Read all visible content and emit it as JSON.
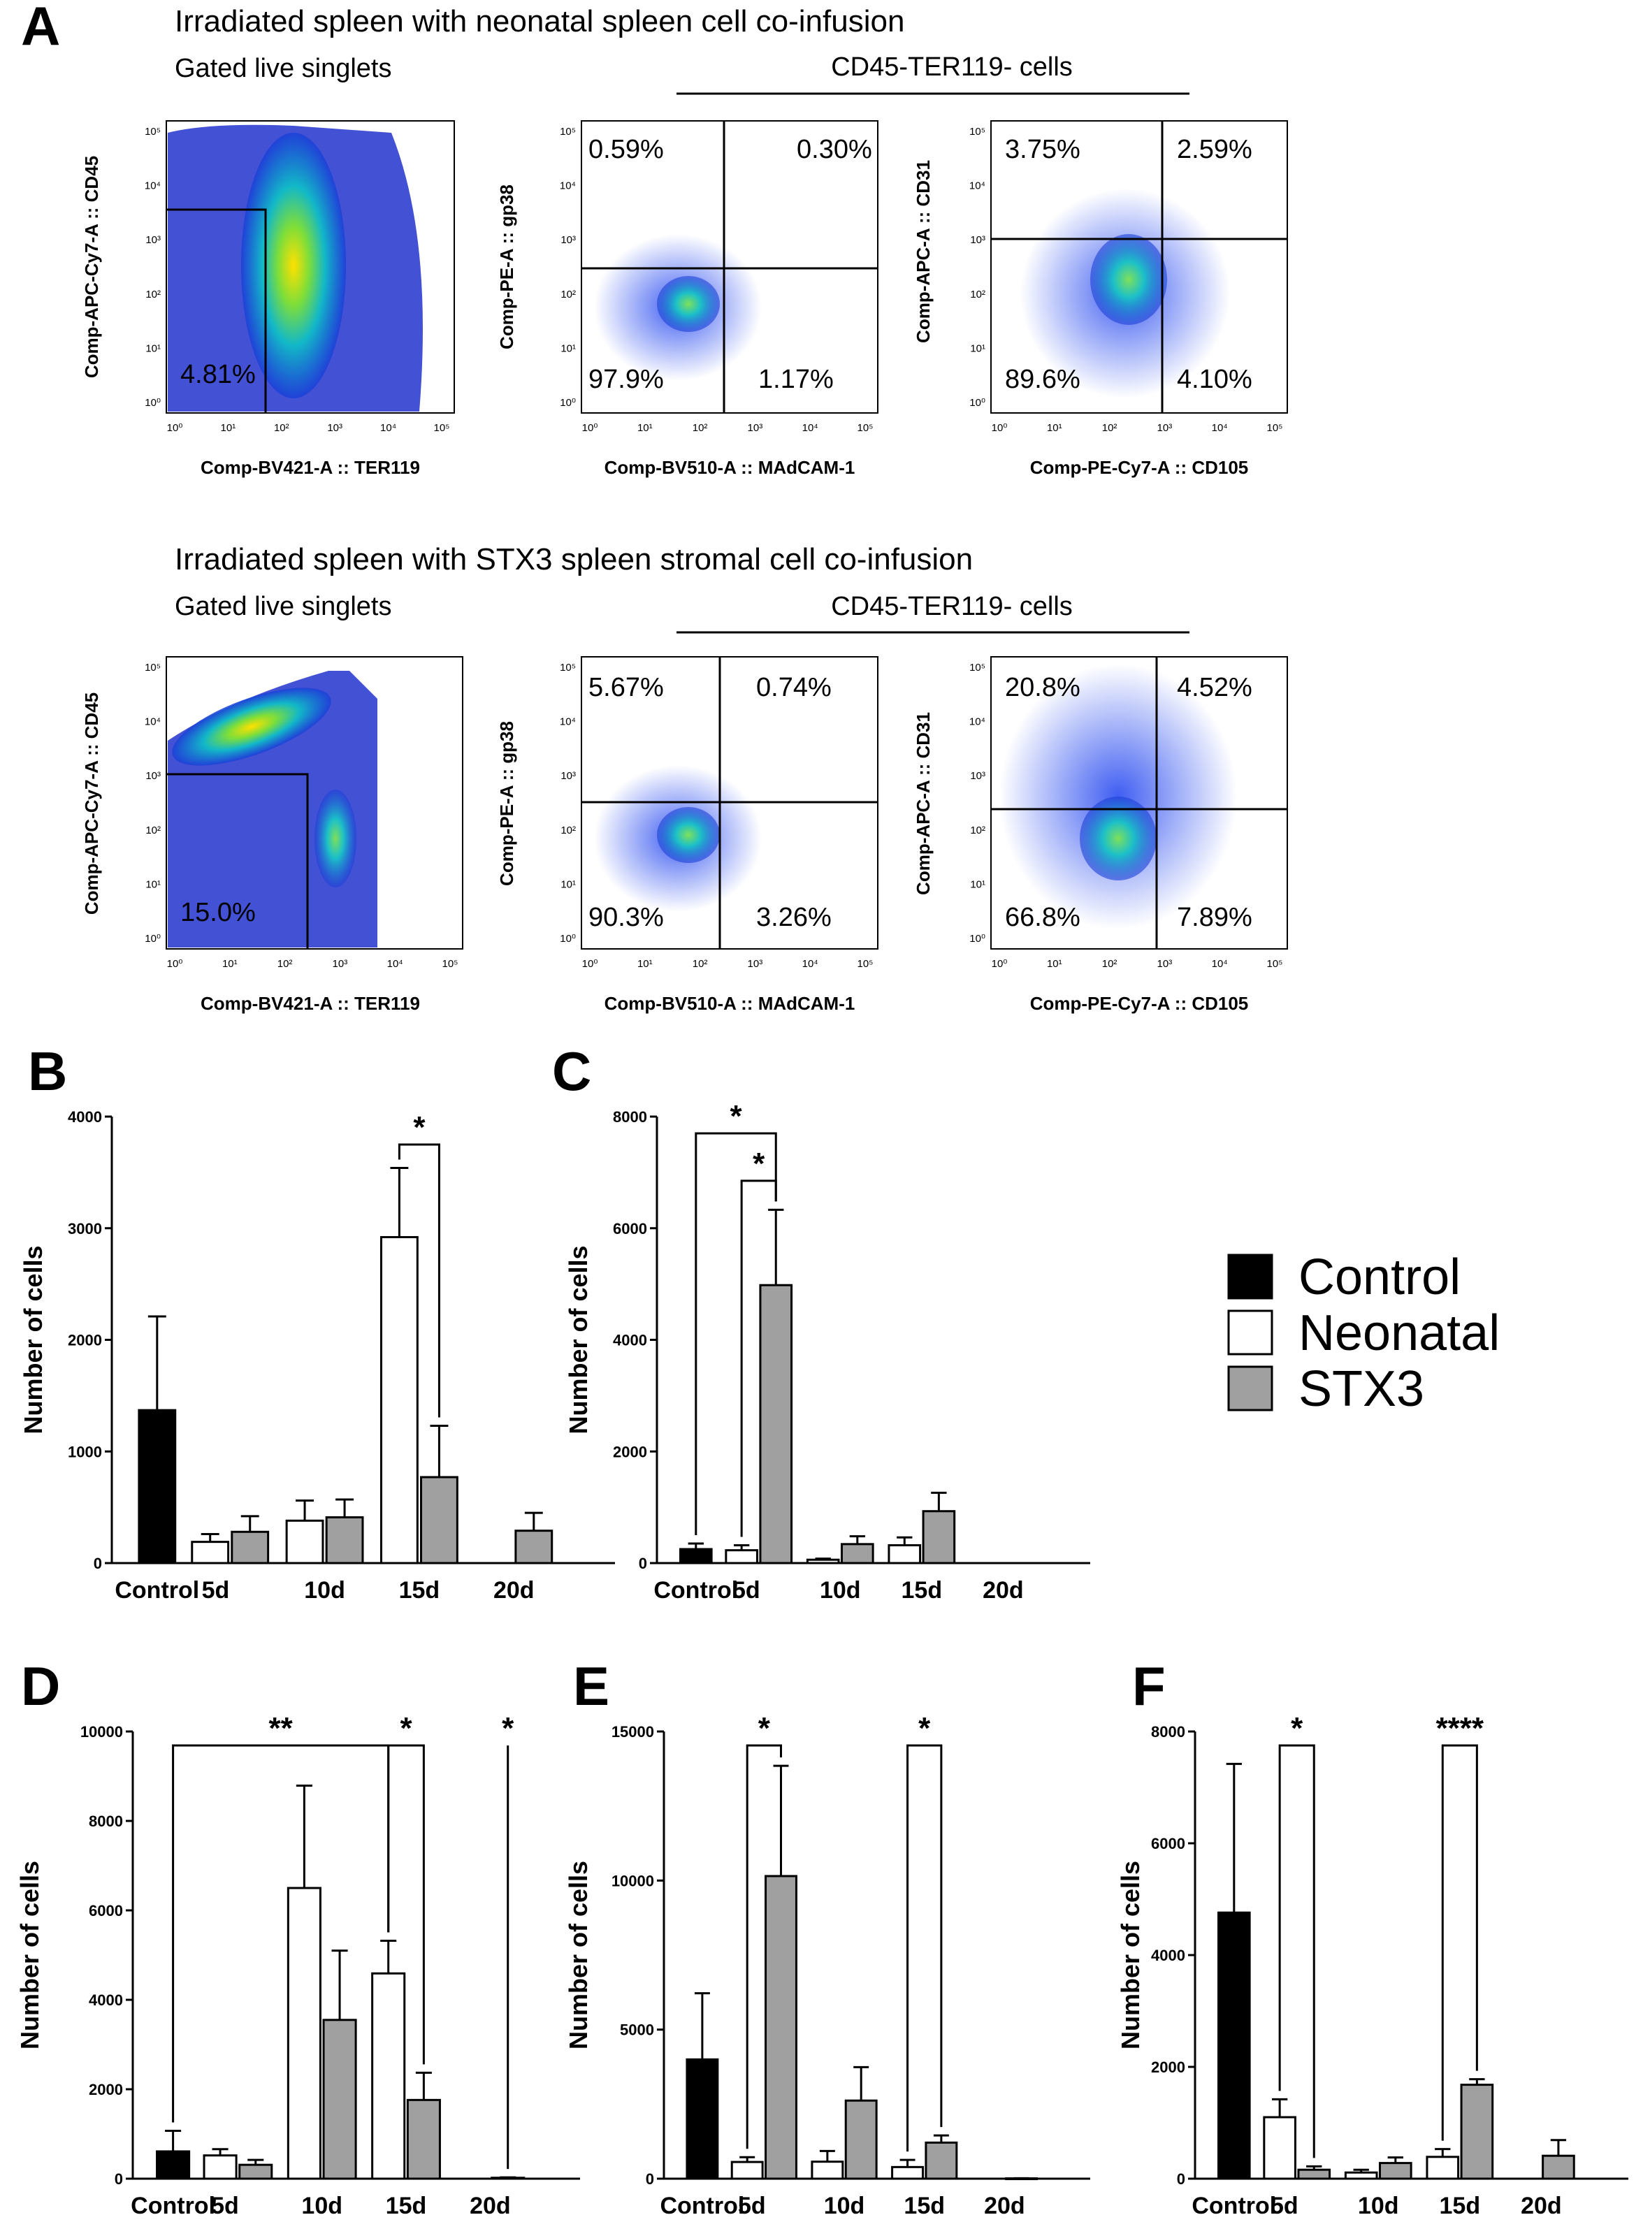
{
  "figure": {
    "panel_A_letter": "A",
    "rows": [
      {
        "title": "Irradiated spleen with neonatal spleen cell co-infusion",
        "gated_label": "Gated live singlets",
        "subset_label": "CD45-TER119- cells",
        "plots": [
          {
            "name": "cd45-vs-ter119",
            "ylabel": "Comp-APC-Cy7-A :: CD45",
            "xlabel": "Comp-BV421-A :: TER119",
            "quadrants": {
              "ll": "4.81%"
            }
          },
          {
            "name": "gp38-vs-madcam",
            "ylabel": "Comp-PE-A :: gp38",
            "xlabel": "Comp-BV510-A :: MAdCAM-1",
            "quadrants": {
              "ul": "0.59%",
              "ur": "0.30%",
              "ll": "97.9%",
              "lr": "1.17%"
            }
          },
          {
            "name": "cd31-vs-cd105",
            "ylabel": "Comp-APC-A :: CD31",
            "xlabel": "Comp-PE-Cy7-A :: CD105",
            "quadrants": {
              "ul": "3.75%",
              "ur": "2.59%",
              "ll": "89.6%",
              "lr": "4.10%"
            }
          }
        ]
      },
      {
        "title": "Irradiated spleen with STX3 spleen stromal cell co-infusion",
        "gated_label": "Gated live singlets",
        "subset_label": "CD45-TER119- cells",
        "plots": [
          {
            "name": "cd45-vs-ter119",
            "ylabel": "Comp-APC-Cy7-A :: CD45",
            "xlabel": "Comp-BV421-A :: TER119",
            "quadrants": {
              "ll": "15.0%"
            }
          },
          {
            "name": "gp38-vs-madcam",
            "ylabel": "Comp-PE-A :: gp38",
            "xlabel": "Comp-BV510-A :: MAdCAM-1",
            "quadrants": {
              "ul": "5.67%",
              "ur": "0.74%",
              "ll": "90.3%",
              "lr": "3.26%"
            }
          },
          {
            "name": "cd31-vs-cd105",
            "ylabel": "Comp-APC-A :: CD31",
            "xlabel": "Comp-PE-Cy7-A :: CD105",
            "quadrants": {
              "ul": "20.8%",
              "ur": "4.52%",
              "ll": "66.8%",
              "lr": "7.89%"
            }
          }
        ]
      }
    ],
    "flow_tick_labels": [
      "10⁰",
      "10¹",
      "10²",
      "10³",
      "10⁴",
      "10⁵"
    ],
    "legend": [
      {
        "label": "Control",
        "color": "#000000"
      },
      {
        "label": "Neonatal",
        "color": "#ffffff"
      },
      {
        "label": "STX3",
        "color": "#a0a0a0"
      }
    ]
  },
  "chart_data": [
    {
      "panel": "B",
      "type": "bar",
      "ylabel": "Number of cells",
      "ylim": [
        0,
        4000
      ],
      "yticks": [
        0,
        1000,
        2000,
        3000,
        4000
      ],
      "groups": [
        "Control",
        "5d",
        "10d",
        "15d",
        "20d"
      ],
      "series": [
        {
          "name": "Control",
          "values": [
            1370,
            null,
            null,
            null,
            null
          ],
          "errors": [
            840,
            null,
            null,
            null,
            null
          ]
        },
        {
          "name": "Neonatal",
          "values": [
            null,
            190,
            380,
            2920,
            null
          ],
          "errors": [
            null,
            70,
            180,
            620,
            null
          ]
        },
        {
          "name": "STX3",
          "values": [
            null,
            280,
            410,
            770,
            290
          ],
          "errors": [
            null,
            140,
            160,
            460,
            160
          ]
        }
      ],
      "significance": [
        {
          "label": "*",
          "from": "Neonatal 15d",
          "to": "STX3 15d"
        }
      ]
    },
    {
      "panel": "C",
      "type": "bar",
      "ylabel": "Number of cells",
      "ylim": [
        0,
        8000
      ],
      "yticks": [
        0,
        2000,
        4000,
        6000,
        8000
      ],
      "groups": [
        "Control",
        "5d",
        "10d",
        "15d",
        "20d"
      ],
      "series": [
        {
          "name": "Control",
          "values": [
            250,
            null,
            null,
            null,
            null
          ],
          "errors": [
            100,
            null,
            null,
            null,
            null
          ]
        },
        {
          "name": "Neonatal",
          "values": [
            null,
            230,
            60,
            320,
            null
          ],
          "errors": [
            null,
            90,
            20,
            140,
            null
          ]
        },
        {
          "name": "STX3",
          "values": [
            null,
            4980,
            340,
            930,
            null
          ],
          "errors": [
            null,
            1350,
            140,
            330,
            null
          ]
        }
      ],
      "significance": [
        {
          "label": "*",
          "from": "Control",
          "to": "STX3 5d"
        },
        {
          "label": "*",
          "from": "Neonatal 5d",
          "to": "STX3 5d"
        }
      ]
    },
    {
      "panel": "D",
      "type": "bar",
      "ylabel": "Number of cells",
      "ylim": [
        0,
        10000
      ],
      "yticks": [
        0,
        2000,
        4000,
        6000,
        8000,
        10000
      ],
      "groups": [
        "Control",
        "5d",
        "10d",
        "15d",
        "20d"
      ],
      "series": [
        {
          "name": "Control",
          "values": [
            610,
            null,
            null,
            null,
            null
          ],
          "errors": [
            460,
            null,
            null,
            null,
            null
          ]
        },
        {
          "name": "Neonatal",
          "values": [
            null,
            520,
            6500,
            4590,
            null
          ],
          "errors": [
            null,
            140,
            2290,
            730,
            null
          ]
        },
        {
          "name": "STX3",
          "values": [
            null,
            310,
            3550,
            1760,
            20
          ],
          "errors": [
            null,
            110,
            1550,
            610,
            10
          ]
        }
      ],
      "significance": [
        {
          "label": "**",
          "from": "Control",
          "to": "Neonatal 15d"
        },
        {
          "label": "*",
          "from": "Neonatal 15d",
          "to": "STX3 15d"
        },
        {
          "label": "*",
          "from": "STX3 20d",
          "to": "STX3 20d"
        }
      ]
    },
    {
      "panel": "E",
      "type": "bar",
      "ylabel": "Number of cells",
      "ylim": [
        0,
        15000
      ],
      "yticks": [
        0,
        5000,
        10000,
        15000
      ],
      "groups": [
        "Control",
        "5d",
        "10d",
        "15d",
        "20d"
      ],
      "series": [
        {
          "name": "Control",
          "values": [
            4000,
            null,
            null,
            null,
            null
          ],
          "errors": [
            2220,
            null,
            null,
            null,
            null
          ]
        },
        {
          "name": "Neonatal",
          "values": [
            null,
            560,
            570,
            390,
            null
          ],
          "errors": [
            null,
            160,
            360,
            240,
            null
          ]
        },
        {
          "name": "STX3",
          "values": [
            null,
            10150,
            2620,
            1210,
            10
          ],
          "errors": [
            null,
            3700,
            1120,
            240,
            5
          ]
        }
      ],
      "significance": [
        {
          "label": "*",
          "from": "Neonatal 5d",
          "to": "STX3 5d"
        },
        {
          "label": "*",
          "from": "Neonatal 15d",
          "to": "STX3 15d"
        }
      ]
    },
    {
      "panel": "F",
      "type": "bar",
      "ylabel": "Number of cells",
      "ylim": [
        0,
        8000
      ],
      "yticks": [
        0,
        2000,
        4000,
        6000,
        8000
      ],
      "groups": [
        "Control",
        "5d",
        "10d",
        "15d",
        "20d"
      ],
      "series": [
        {
          "name": "Control",
          "values": [
            4760,
            null,
            null,
            null,
            null
          ],
          "errors": [
            2660,
            null,
            null,
            null,
            null
          ]
        },
        {
          "name": "Neonatal",
          "values": [
            null,
            1100,
            110,
            390,
            null
          ],
          "errors": [
            null,
            320,
            50,
            140,
            null
          ]
        },
        {
          "name": "STX3",
          "values": [
            null,
            160,
            280,
            1680,
            410
          ],
          "errors": [
            null,
            60,
            100,
            100,
            280
          ]
        }
      ],
      "significance": [
        {
          "label": "*",
          "from": "Neonatal 5d",
          "to": "STX3 5d"
        },
        {
          "label": "****",
          "from": "Neonatal 15d",
          "to": "STX3 15d"
        }
      ]
    }
  ]
}
